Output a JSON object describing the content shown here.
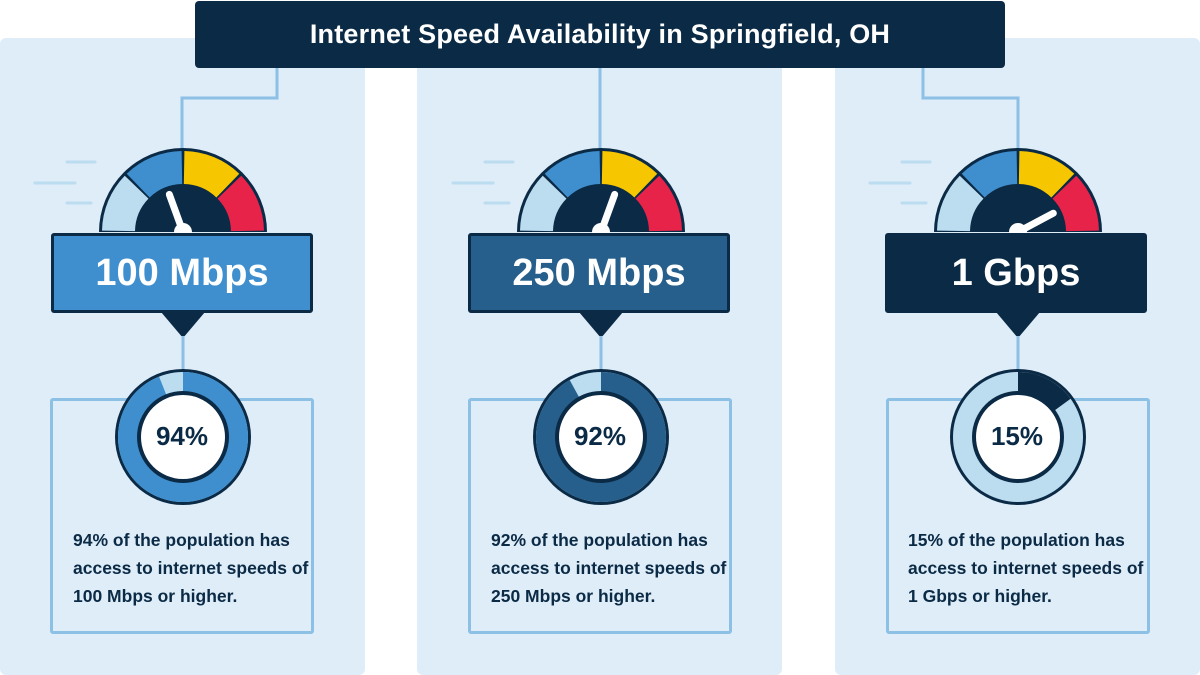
{
  "title": "Internet Speed Availability in Springfield, OH",
  "colors": {
    "navy": "#0b2a45",
    "panel": "#deedf8",
    "gauge_light": "#bcdcf0",
    "gauge_blue": "#3f8fcf",
    "gauge_yellow": "#f6c700",
    "gauge_red": "#e8234a"
  },
  "chart_data": {
    "type": "donut",
    "title": "Internet Speed Availability in Springfield, OH",
    "unit": "%",
    "categories": [
      "100 Mbps",
      "250 Mbps",
      "1 Gbps"
    ],
    "values": [
      94,
      92,
      15
    ],
    "series": [
      {
        "label": "100 Mbps",
        "percent": 94,
        "percent_label": "94%",
        "box_color": "#3f8fcf",
        "ring_color": "#3f8fcf",
        "needle_angle": -20,
        "description": "94% of the population has access to internet speeds of 100 Mbps or higher."
      },
      {
        "label": "250 Mbps",
        "percent": 92,
        "percent_label": "92%",
        "box_color": "#265f8b",
        "ring_color": "#265f8b",
        "needle_angle": 20,
        "description": "92% of the population has access to internet speeds of 250 Mbps or higher."
      },
      {
        "label": "1 Gbps",
        "percent": 15,
        "percent_label": "15%",
        "box_color": "#0b2a45",
        "ring_color": "#0b2a45",
        "needle_angle": 62,
        "description": "15% of the population has access to internet speeds of 1 Gbps or higher."
      }
    ]
  }
}
